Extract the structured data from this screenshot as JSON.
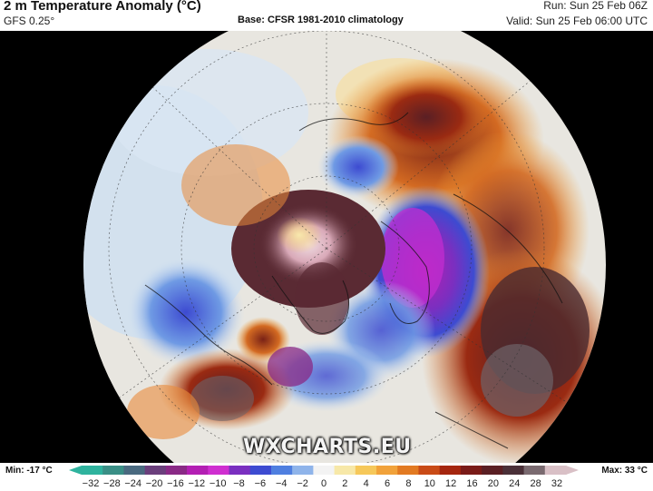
{
  "header": {
    "title": "2 m Temperature Anomaly (°C)",
    "model": "GFS 0.25°",
    "base": "Base: CFSR 1981-2010 climatology",
    "run": "Run: Sun 25 Feb 06Z",
    "valid": "Valid: Sun 25 Feb 06:00 UTC"
  },
  "map": {
    "projection": "north-polar-stereographic",
    "watermark": "WXCHARTS.EU"
  },
  "legend": {
    "min_label": "Min: -17 °C",
    "max_label": "Max: 33 °C",
    "ticks": [
      "−32",
      "−28",
      "−24",
      "−20",
      "−16",
      "−12",
      "−10",
      "−8",
      "−6",
      "−4",
      "−2",
      "0",
      "2",
      "4",
      "6",
      "8",
      "10",
      "12",
      "16",
      "20",
      "24",
      "28",
      "32"
    ],
    "colors": [
      "#2fb39e",
      "#3a8f86",
      "#4a6a80",
      "#6b3f7c",
      "#8a2a86",
      "#b31fb3",
      "#cf2fd0",
      "#7a2fc0",
      "#3d4bd1",
      "#4f7fe0",
      "#8fb4ea",
      "#f3f3f3",
      "#f7e8a8",
      "#f6c85a",
      "#f1a23a",
      "#e27a22",
      "#c94b17",
      "#a5260f",
      "#7a1b18",
      "#5a1f24",
      "#4a3038",
      "#7a6a70",
      "#d9c0c6"
    ]
  }
}
